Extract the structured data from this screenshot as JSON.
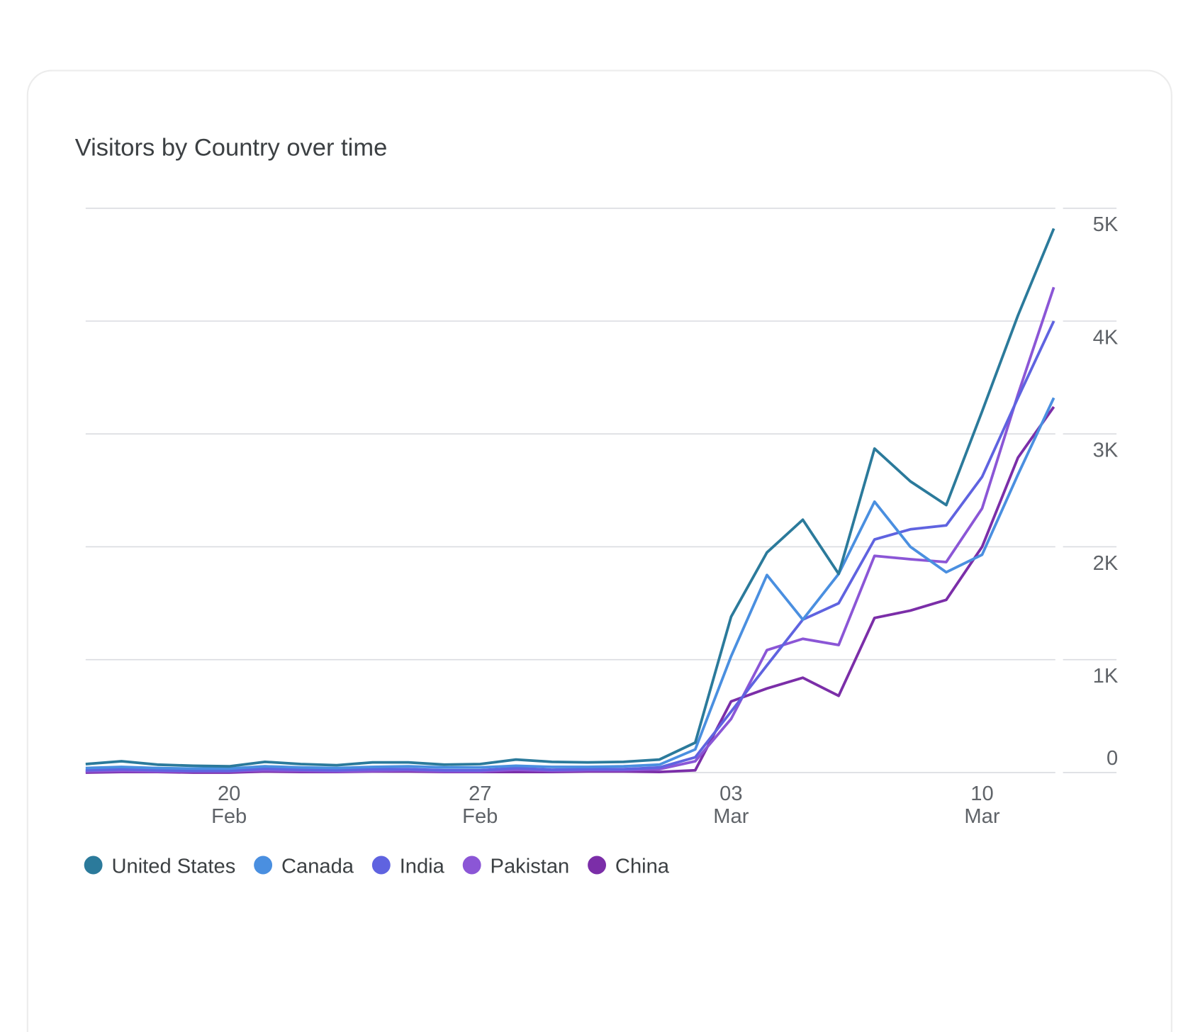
{
  "chart_data": {
    "type": "line",
    "title": "Visitors by Country over time",
    "categories": [
      null,
      null,
      null,
      null,
      "20 Feb",
      null,
      null,
      null,
      null,
      null,
      null,
      "27 Feb",
      null,
      null,
      null,
      null,
      null,
      null,
      "03 Mar",
      null,
      null,
      null,
      null,
      null,
      null,
      "10 Mar",
      null,
      null
    ],
    "series": [
      {
        "name": "United States",
        "color": "#2b7a9b",
        "values": [
          75,
          100,
          70,
          60,
          55,
          95,
          75,
          65,
          90,
          90,
          70,
          75,
          115,
          95,
          90,
          95,
          115,
          265,
          1380,
          1950,
          2240,
          1760,
          2870,
          2580,
          2370,
          3200,
          4050,
          4820
        ]
      },
      {
        "name": "Canada",
        "color": "#4a8fe0",
        "values": [
          40,
          50,
          40,
          35,
          35,
          55,
          45,
          40,
          50,
          55,
          45,
          45,
          60,
          50,
          50,
          55,
          70,
          205,
          1030,
          1750,
          1355,
          1760,
          2400,
          2000,
          1775,
          1930,
          2640,
          3320
        ]
      },
      {
        "name": "India",
        "color": "#5f63e0",
        "values": [
          20,
          30,
          20,
          15,
          15,
          35,
          25,
          20,
          30,
          30,
          20,
          20,
          40,
          25,
          30,
          30,
          45,
          135,
          540,
          950,
          1355,
          1500,
          2065,
          2155,
          2190,
          2620,
          3320,
          4000
        ]
      },
      {
        "name": "Pakistan",
        "color": "#8b56d6",
        "values": [
          10,
          15,
          10,
          10,
          10,
          20,
          15,
          10,
          15,
          20,
          10,
          10,
          25,
          15,
          20,
          20,
          30,
          100,
          475,
          1085,
          1185,
          1130,
          1920,
          1890,
          1865,
          2340,
          3350,
          4300
        ]
      },
      {
        "name": "China",
        "color": "#7b2ea8",
        "values": [
          0,
          5,
          5,
          0,
          0,
          10,
          5,
          5,
          10,
          10,
          5,
          5,
          5,
          5,
          10,
          10,
          5,
          20,
          630,
          745,
          840,
          680,
          1370,
          1435,
          1530,
          2000,
          2790,
          3240
        ]
      }
    ],
    "ylim": [
      0,
      5000
    ],
    "yticks": [
      0,
      {
        "value": 1000,
        "label": "1K"
      },
      {
        "value": 2000,
        "label": "2K"
      },
      {
        "value": 3000,
        "label": "3K"
      },
      {
        "value": 4000,
        "label": "4K"
      },
      {
        "value": 5000,
        "label": "5K"
      }
    ],
    "grid": true
  }
}
